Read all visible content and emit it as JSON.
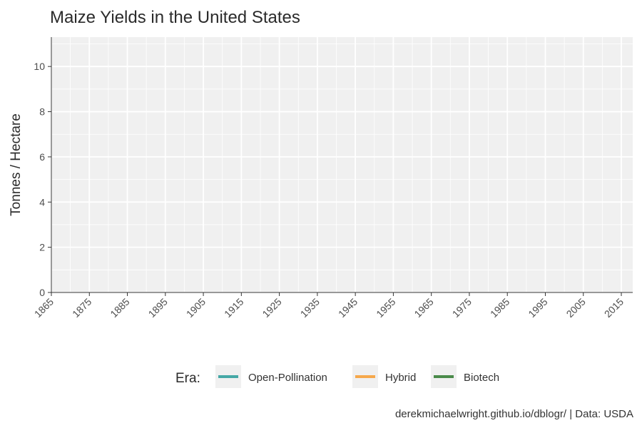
{
  "chart_data": {
    "type": "line",
    "title": "Maize Yields in the United States",
    "xlabel": "",
    "ylabel": "Tonnes / Hectare",
    "xlim": [
      1865,
      2018
    ],
    "ylim": [
      0,
      11.3
    ],
    "x_ticks": [
      1865,
      1875,
      1885,
      1895,
      1905,
      1915,
      1925,
      1935,
      1945,
      1955,
      1965,
      1975,
      1985,
      1995,
      2005,
      2015
    ],
    "y_ticks": [
      0,
      2,
      4,
      6,
      8,
      10
    ],
    "grid": true,
    "series": [
      {
        "name": "Open-Pollination",
        "color": "#45a8a6",
        "values": []
      },
      {
        "name": "Hybrid",
        "color": "#f6a84b",
        "values": []
      },
      {
        "name": "Biotech",
        "color": "#4a8a4a",
        "values": []
      }
    ],
    "legend": {
      "title": "Era:",
      "position": "bottom"
    },
    "caption": "derekmichaelwright.github.io/dblogr/ | Data: USDA",
    "colors": {
      "panel_background": "#f0f0f0",
      "grid": "#ffffff",
      "text": "#2b2b2b"
    }
  }
}
